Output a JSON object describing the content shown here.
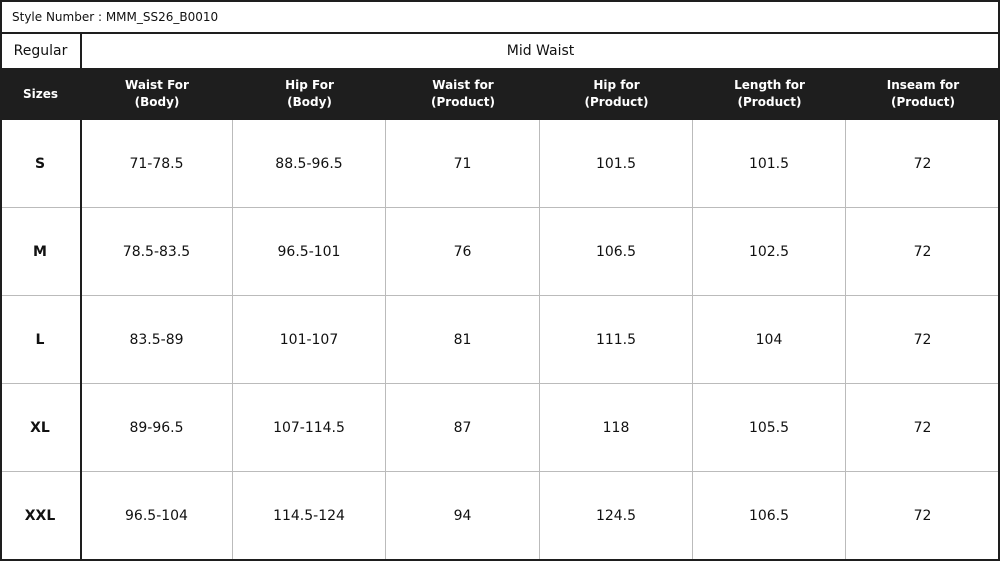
{
  "header": {
    "style_number": "Style Number : MMM_SS26_B0010",
    "fit": "Regular",
    "rise": "Mid Waist"
  },
  "table": {
    "columns": [
      [
        "Sizes"
      ],
      [
        "Waist For",
        "(Body)"
      ],
      [
        "Hip For",
        "(Body)"
      ],
      [
        "Waist for",
        "(Product)"
      ],
      [
        "Hip for",
        "(Product)"
      ],
      [
        "Length for",
        "(Product)"
      ],
      [
        "Inseam for",
        "(Product)"
      ]
    ],
    "rows": [
      [
        "S",
        "71-78.5",
        "88.5-96.5",
        "71",
        "101.5",
        "101.5",
        "72"
      ],
      [
        "M",
        "78.5-83.5",
        "96.5-101",
        "76",
        "106.5",
        "102.5",
        "72"
      ],
      [
        "L",
        "83.5-89",
        "101-107",
        "81",
        "111.5",
        "104",
        "72"
      ],
      [
        "XL",
        "89-96.5",
        "107-114.5",
        "87",
        "118",
        "105.5",
        "72"
      ],
      [
        "XXL",
        "96.5-104",
        "114.5-124",
        "94",
        "124.5",
        "106.5",
        "72"
      ]
    ]
  }
}
